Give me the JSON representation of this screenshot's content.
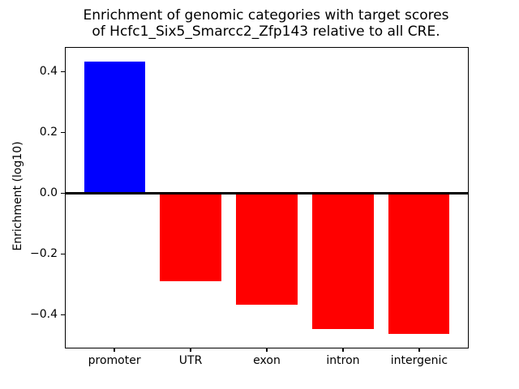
{
  "title": {
    "line1": "Enrichment of genomic categories with target scores",
    "line2": "of Hcfc1_Six5_Smarcc2_Zfp143 relative to all CRE."
  },
  "chart_data": {
    "type": "bar",
    "title": "Enrichment of genomic categories with target scores\nof Hcfc1_Six5_Smarcc2_Zfp143 relative to all CRE.",
    "xlabel": "",
    "ylabel": "Enrichment (log10)",
    "categories": [
      "promoter",
      "UTR",
      "exon",
      "intron",
      "intergenic"
    ],
    "values": [
      0.433,
      -0.289,
      -0.368,
      -0.447,
      -0.462
    ],
    "bar_colors": [
      "#0000ff",
      "#ff0000",
      "#ff0000",
      "#ff0000",
      "#ff0000"
    ],
    "bar_width": 0.8,
    "x_positions": [
      0,
      1,
      2,
      3,
      4
    ],
    "xlim": [
      -0.64,
      4.64
    ],
    "ylim": [
      -0.508,
      0.478
    ],
    "yticks": [
      {
        "value": 0.4,
        "label": "0.4"
      },
      {
        "value": 0.2,
        "label": "0.2"
      },
      {
        "value": 0.0,
        "label": "0.0"
      },
      {
        "value": -0.2,
        "label": "−0.2"
      },
      {
        "value": -0.4,
        "label": "−0.4"
      }
    ],
    "zero_line": true,
    "grid": false,
    "legend": null
  },
  "colors": {
    "positive_bar": "#0000ff",
    "negative_bar": "#ff0000",
    "axis": "#000000",
    "background": "#ffffff"
  }
}
